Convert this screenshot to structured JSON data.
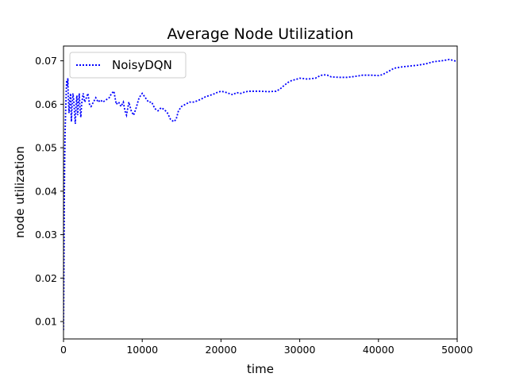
{
  "chart_data": {
    "type": "line",
    "title": "Average Node Utilization",
    "xlabel": "time",
    "ylabel": "node utilization",
    "xlim": [
      0,
      50000
    ],
    "ylim": [
      0.006,
      0.0734
    ],
    "xticks": [
      0,
      10000,
      20000,
      30000,
      40000,
      50000
    ],
    "xtick_labels": [
      "0",
      "10000",
      "20000",
      "30000",
      "40000",
      "50000"
    ],
    "yticks": [
      0.01,
      0.02,
      0.03,
      0.04,
      0.05,
      0.06,
      0.07
    ],
    "ytick_labels": [
      "0.01",
      "0.02",
      "0.03",
      "0.04",
      "0.05",
      "0.06",
      "0.07"
    ],
    "grid": false,
    "legend_position": "top-left",
    "series": [
      {
        "name": "NoisyDQN",
        "color": "#0000ff",
        "line_style": "dotted",
        "points": [
          [
            0,
            0.008
          ],
          [
            50,
            0.022
          ],
          [
            100,
            0.037
          ],
          [
            150,
            0.047
          ],
          [
            200,
            0.053
          ],
          [
            250,
            0.057
          ],
          [
            300,
            0.06
          ],
          [
            350,
            0.063
          ],
          [
            400,
            0.0655
          ],
          [
            450,
            0.064
          ],
          [
            500,
            0.0645
          ],
          [
            550,
            0.066
          ],
          [
            600,
            0.062
          ],
          [
            650,
            0.06
          ],
          [
            700,
            0.058
          ],
          [
            800,
            0.061
          ],
          [
            900,
            0.0625
          ],
          [
            1000,
            0.056
          ],
          [
            1100,
            0.06
          ],
          [
            1200,
            0.0625
          ],
          [
            1300,
            0.061
          ],
          [
            1400,
            0.058
          ],
          [
            1500,
            0.0555
          ],
          [
            1600,
            0.06
          ],
          [
            1700,
            0.062
          ],
          [
            1800,
            0.0575
          ],
          [
            1900,
            0.06
          ],
          [
            2000,
            0.0625
          ],
          [
            2100,
            0.059
          ],
          [
            2200,
            0.057
          ],
          [
            2300,
            0.06
          ],
          [
            2500,
            0.0625
          ],
          [
            2700,
            0.0605
          ],
          [
            2900,
            0.0615
          ],
          [
            3100,
            0.0625
          ],
          [
            3300,
            0.06
          ],
          [
            3500,
            0.0595
          ],
          [
            3800,
            0.0605
          ],
          [
            4100,
            0.0615
          ],
          [
            4400,
            0.0605
          ],
          [
            4700,
            0.061
          ],
          [
            5000,
            0.0605
          ],
          [
            5400,
            0.061
          ],
          [
            5800,
            0.0615
          ],
          [
            6100,
            0.0625
          ],
          [
            6400,
            0.063
          ],
          [
            6700,
            0.06
          ],
          [
            7000,
            0.0605
          ],
          [
            7300,
            0.0595
          ],
          [
            7600,
            0.0605
          ],
          [
            7800,
            0.0585
          ],
          [
            8000,
            0.0575
          ],
          [
            8300,
            0.0605
          ],
          [
            8600,
            0.0585
          ],
          [
            8900,
            0.0575
          ],
          [
            9200,
            0.059
          ],
          [
            9600,
            0.0615
          ],
          [
            10000,
            0.0625
          ],
          [
            10400,
            0.0615
          ],
          [
            10800,
            0.0605
          ],
          [
            11200,
            0.0605
          ],
          [
            11600,
            0.059
          ],
          [
            12000,
            0.0585
          ],
          [
            12400,
            0.0592
          ],
          [
            12800,
            0.0588
          ],
          [
            13200,
            0.058
          ],
          [
            13600,
            0.0565
          ],
          [
            14000,
            0.056
          ],
          [
            14300,
            0.0565
          ],
          [
            14600,
            0.0585
          ],
          [
            15000,
            0.0595
          ],
          [
            15500,
            0.06
          ],
          [
            16000,
            0.0605
          ],
          [
            16500,
            0.0605
          ],
          [
            17000,
            0.0608
          ],
          [
            17500,
            0.0612
          ],
          [
            18000,
            0.0617
          ],
          [
            18500,
            0.062
          ],
          [
            19000,
            0.0623
          ],
          [
            19500,
            0.0627
          ],
          [
            20000,
            0.063
          ],
          [
            20500,
            0.0628
          ],
          [
            21000,
            0.0625
          ],
          [
            21500,
            0.0622
          ],
          [
            22000,
            0.0627
          ],
          [
            22500,
            0.0625
          ],
          [
            23000,
            0.0628
          ],
          [
            23500,
            0.063
          ],
          [
            24000,
            0.063
          ],
          [
            25000,
            0.063
          ],
          [
            26000,
            0.0629
          ],
          [
            27000,
            0.063
          ],
          [
            27500,
            0.0635
          ],
          [
            28000,
            0.0643
          ],
          [
            28500,
            0.065
          ],
          [
            29000,
            0.0655
          ],
          [
            29500,
            0.0657
          ],
          [
            30000,
            0.066
          ],
          [
            31000,
            0.0658
          ],
          [
            32000,
            0.066
          ],
          [
            32500,
            0.0665
          ],
          [
            33000,
            0.0668
          ],
          [
            33500,
            0.0667
          ],
          [
            34000,
            0.0663
          ],
          [
            35000,
            0.0662
          ],
          [
            36000,
            0.0662
          ],
          [
            37000,
            0.0664
          ],
          [
            38000,
            0.0667
          ],
          [
            39000,
            0.0667
          ],
          [
            40000,
            0.0666
          ],
          [
            40500,
            0.0668
          ],
          [
            41000,
            0.0673
          ],
          [
            41500,
            0.0678
          ],
          [
            42000,
            0.0683
          ],
          [
            43000,
            0.0686
          ],
          [
            44000,
            0.0688
          ],
          [
            45000,
            0.069
          ],
          [
            46000,
            0.0693
          ],
          [
            47000,
            0.0698
          ],
          [
            48000,
            0.07
          ],
          [
            49000,
            0.0703
          ],
          [
            49500,
            0.0701
          ],
          [
            50000,
            0.0698
          ]
        ]
      }
    ]
  }
}
